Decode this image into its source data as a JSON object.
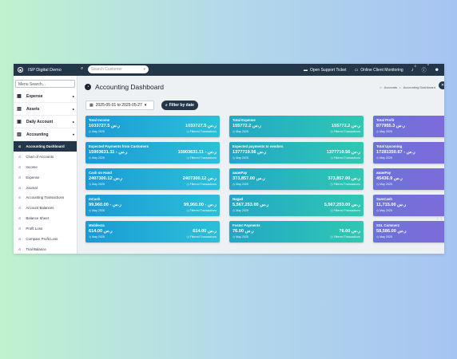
{
  "app": {
    "title": "ISP Digital Demo"
  },
  "topbar": {
    "search_placeholder": "Search Customer",
    "support_label": "Open Support Ticket",
    "monitoring_label": "Online Client Monitoring",
    "notif_count": "0",
    "info_count": "0"
  },
  "sidebar": {
    "search_placeholder": "Menu Search...",
    "groups": [
      {
        "label": "Expense"
      },
      {
        "label": "Assets"
      },
      {
        "label": "Daily Account"
      },
      {
        "label": "Accounting"
      }
    ],
    "items": [
      "Accounting Dashboard",
      "Chart of Accounts",
      "Income",
      "Expense",
      "Journal",
      "Accounting Transactions",
      "Account Balances",
      "Balance Sheet",
      "Profit Loss",
      "Compare Profit Loss",
      "Trial Balance"
    ]
  },
  "page": {
    "title": "Accounting Dashboard",
    "breadcrumb": {
      "root": "Accounts",
      "sep": "•",
      "current": "Accounting Dashboard"
    },
    "date_range": "2025-05-01 to 2025-05-27",
    "filter_label": "Filter by date"
  },
  "card_foot": {
    "month": "May 2025",
    "note": "Filtered Transactions"
  },
  "cards": [
    {
      "title": "Total Income",
      "left": "1033727.5 ر.س",
      "right": "1033727.5 ر.س"
    },
    {
      "title": "Total Expense",
      "left": "155772.2 ر.س",
      "right": "155772.2 ر.س"
    },
    {
      "title": "Total Profit",
      "left": "877955.3 ر.س",
      "right": "877955.3 ر.س"
    },
    {
      "title": "Expected Payments from Customers",
      "left": "15903631.11 - ر.س",
      "right": "15903631.11 - ر.س"
    },
    {
      "title": "Expected payments to vendors",
      "left": "1377719.56 ر.س",
      "right": "1377719.56 ر.س"
    },
    {
      "title": "Total Upcoming",
      "left": "17281350.67 - ر.س",
      "right": "17281350.67 - ر.س"
    },
    {
      "title": "Cash on Hand",
      "left": "2407300.12 ر.س",
      "right": "2407300.12 ر.س"
    },
    {
      "title": "аманPay",
      "left": "373,857.00 ر.س",
      "right": "373,857.00 ر.س"
    },
    {
      "title": "аманPay",
      "left": "45436.9 ر.س",
      "right": "45436.9 ر.س"
    },
    {
      "title": "mCash",
      "left": "99,960.00 - ر.س",
      "right": "99,960.00 - ر.س"
    },
    {
      "title": "Nagad",
      "left": "5,567,253.00 ر.س",
      "right": "5,567,253.00 ر.س"
    },
    {
      "title": "SureCash",
      "left": "11,715.00 ر.س",
      "right": "11,715.00 ر.س"
    },
    {
      "title": "Mobilecta",
      "left": "614.00 ر.س",
      "right": "614.00 ر.س"
    },
    {
      "title": "Foster Payments",
      "left": "76.00 ر.س",
      "right": "76.00 ر.س"
    },
    {
      "title": "SSL Commerz",
      "left": "58,586.00 ر.س",
      "right": "58,586.00 ر.س"
    }
  ]
}
